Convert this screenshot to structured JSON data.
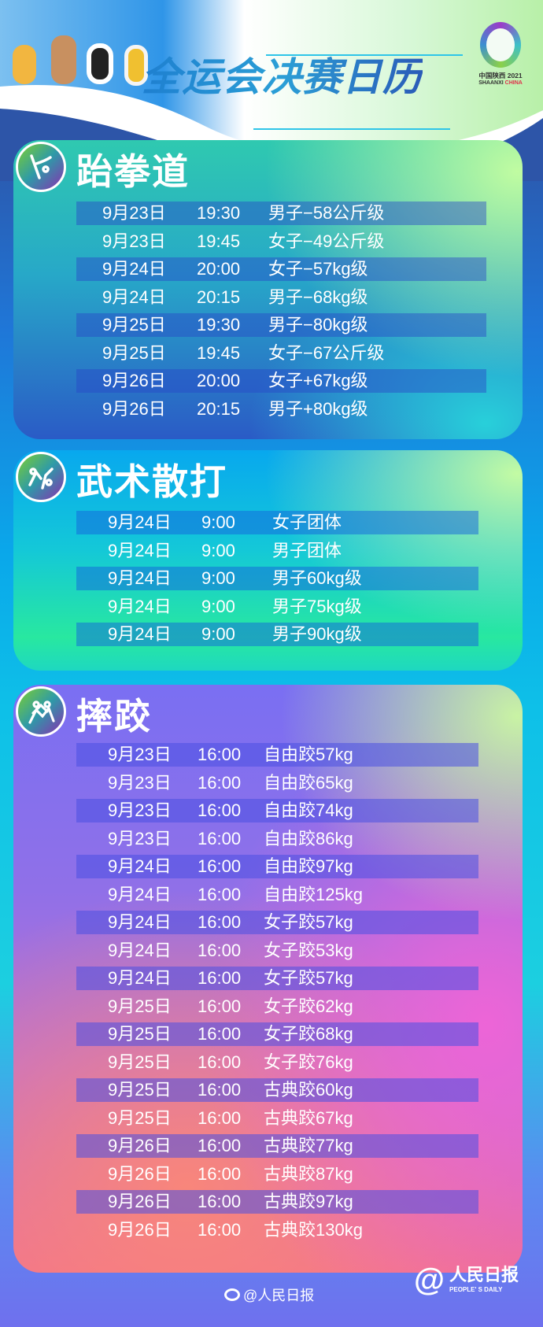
{
  "header": {
    "title": "全运会决赛日历",
    "logo_line1": "中国陕西 2021",
    "logo_line2_a": "SHAANXI ",
    "logo_line2_b": "CHINA"
  },
  "sections": [
    {
      "title": "跆拳道",
      "icon": "taekwondo-icon",
      "rows": [
        {
          "date": "9月23日",
          "time": "19:30",
          "event": "男子−58公斤级"
        },
        {
          "date": "9月23日",
          "time": "19:45",
          "event": "女子−49公斤级"
        },
        {
          "date": "9月24日",
          "time": "20:00",
          "event": "女子−57kg级"
        },
        {
          "date": "9月24日",
          "time": "20:15",
          "event": "男子−68kg级"
        },
        {
          "date": "9月25日",
          "time": "19:30",
          "event": "男子−80kg级"
        },
        {
          "date": "9月25日",
          "time": "19:45",
          "event": "女子−67公斤级"
        },
        {
          "date": "9月26日",
          "time": "20:00",
          "event": "女子+67kg级"
        },
        {
          "date": "9月26日",
          "time": "20:15",
          "event": "男子+80kg级"
        }
      ]
    },
    {
      "title": "武术散打",
      "icon": "sanda-icon",
      "rows": [
        {
          "date": "9月24日",
          "time": "9:00",
          "event": "女子团体"
        },
        {
          "date": "9月24日",
          "time": "9:00",
          "event": "男子团体"
        },
        {
          "date": "9月24日",
          "time": "9:00",
          "event": "男子60kg级"
        },
        {
          "date": "9月24日",
          "time": "9:00",
          "event": "男子75kg级"
        },
        {
          "date": "9月24日",
          "time": "9:00",
          "event": "男子90kg级"
        }
      ]
    },
    {
      "title": "摔跤",
      "icon": "wrestling-icon",
      "rows": [
        {
          "date": "9月23日",
          "time": "16:00",
          "event": "自由跤57kg"
        },
        {
          "date": "9月23日",
          "time": "16:00",
          "event": "自由跤65kg"
        },
        {
          "date": "9月23日",
          "time": "16:00",
          "event": "自由跤74kg"
        },
        {
          "date": "9月23日",
          "time": "16:00",
          "event": "自由跤86kg"
        },
        {
          "date": "9月24日",
          "time": "16:00",
          "event": "自由跤97kg"
        },
        {
          "date": "9月24日",
          "time": "16:00",
          "event": "自由跤125kg"
        },
        {
          "date": "9月24日",
          "time": "16:00",
          "event": "女子跤57kg"
        },
        {
          "date": "9月24日",
          "time": "16:00",
          "event": "女子跤53kg"
        },
        {
          "date": "9月24日",
          "time": "16:00",
          "event": "女子跤57kg"
        },
        {
          "date": "9月25日",
          "time": "16:00",
          "event": "女子跤62kg"
        },
        {
          "date": "9月25日",
          "time": "16:00",
          "event": "女子跤68kg"
        },
        {
          "date": "9月25日",
          "time": "16:00",
          "event": "女子跤76kg"
        },
        {
          "date": "9月25日",
          "time": "16:00",
          "event": "古典跤60kg"
        },
        {
          "date": "9月25日",
          "time": "16:00",
          "event": "古典跤67kg"
        },
        {
          "date": "9月26日",
          "time": "16:00",
          "event": "古典跤77kg"
        },
        {
          "date": "9月26日",
          "time": "16:00",
          "event": "古典跤87kg"
        },
        {
          "date": "9月26日",
          "time": "16:00",
          "event": "古典跤97kg"
        },
        {
          "date": "9月26日",
          "time": "16:00",
          "event": "古典跤130kg"
        }
      ]
    }
  ],
  "footer": {
    "weibo_handle": "@人民日报",
    "brand_cn": "人民日报",
    "brand_en": "PEOPLE' S DAILY"
  }
}
